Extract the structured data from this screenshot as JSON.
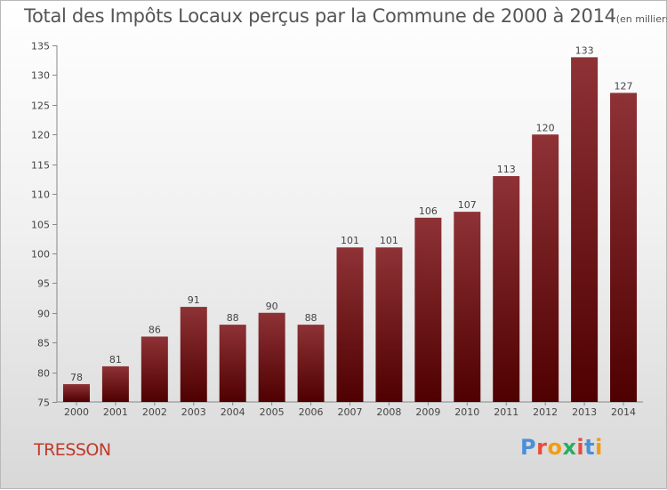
{
  "header": {
    "title": "Total des Impôts Locaux perçus par la Commune de 2000 à 2014",
    "unit": "(en milliers d'€)"
  },
  "footer": {
    "commune": "TRESSON",
    "logo": "Proxiti"
  },
  "colors": {
    "bar_top": "#8e3236",
    "bar_bottom": "#4f0000",
    "commune_text": "#c0392b",
    "logo_letters": [
      "#4a90d9",
      "#e74c3c",
      "#f39c12",
      "#27ae60",
      "#e74c3c",
      "#4a90d9",
      "#f39c12"
    ]
  },
  "chart_data": {
    "type": "bar",
    "title": "Total des Impôts Locaux perçus par la Commune de 2000 à 2014",
    "unit": "(en milliers d'€)",
    "xlabel": "",
    "ylabel": "",
    "categories": [
      "2000",
      "2001",
      "2002",
      "2003",
      "2004",
      "2005",
      "2006",
      "2007",
      "2008",
      "2009",
      "2010",
      "2011",
      "2012",
      "2013",
      "2014"
    ],
    "values": [
      78,
      81,
      86,
      91,
      88,
      90,
      88,
      101,
      101,
      106,
      107,
      113,
      120,
      133,
      127
    ],
    "ylim": [
      75,
      135
    ],
    "yticks": [
      75,
      80,
      85,
      90,
      95,
      100,
      105,
      110,
      115,
      120,
      125,
      130,
      135
    ],
    "grid": false
  }
}
